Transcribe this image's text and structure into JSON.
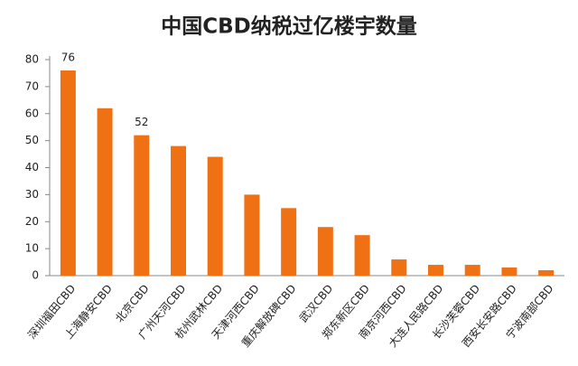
{
  "chart_data": {
    "type": "bar",
    "title": "中国CBD纳税过亿楼宇数量",
    "categories": [
      "深圳福田CBD",
      "上海静安CBD",
      "北京CBD",
      "广州天河CBD",
      "杭州武林CBD",
      "天津河西CBD",
      "重庆解放碑CBD",
      "武汉CBD",
      "郑东新区CBD",
      "南京河西CBD",
      "大连人民路CBD",
      "长沙芙蓉CBD",
      "西安长安路CBD",
      "宁波南部CBD"
    ],
    "values": [
      76,
      62,
      52,
      48,
      44,
      30,
      25,
      18,
      15,
      6,
      4,
      4,
      3,
      2
    ],
    "value_labels": [
      "76",
      null,
      "52",
      null,
      null,
      null,
      null,
      null,
      null,
      null,
      null,
      null,
      null,
      null
    ],
    "color": "#f07014",
    "ylim": [
      0,
      80
    ],
    "yticks": [
      0,
      10,
      20,
      30,
      40,
      50,
      60,
      70,
      80
    ],
    "grid": false
  }
}
